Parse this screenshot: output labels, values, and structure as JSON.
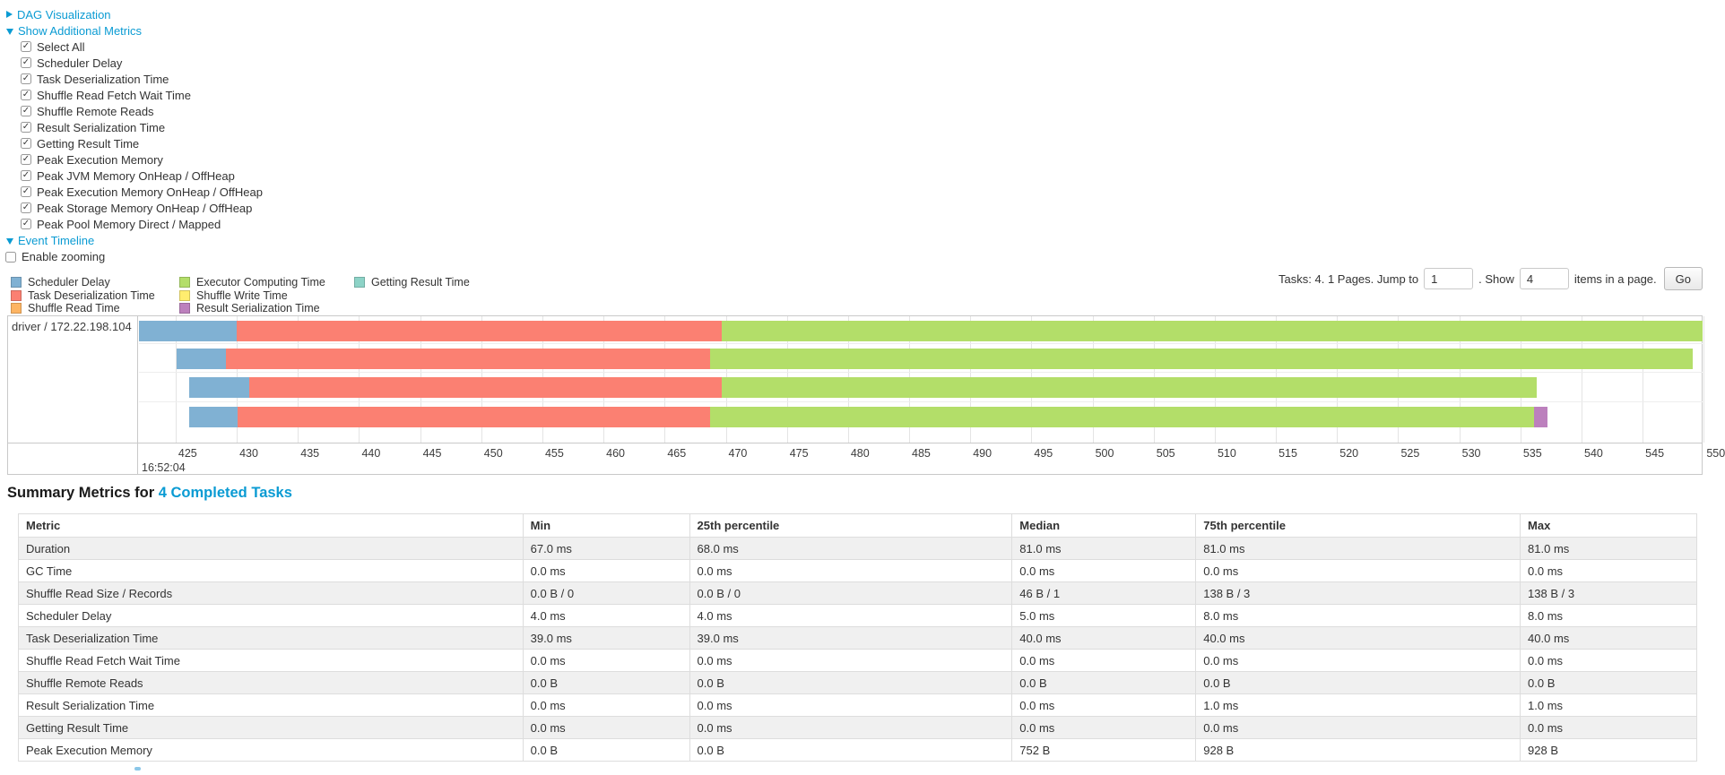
{
  "links": {
    "dag": "DAG Visualization",
    "metrics": "Show Additional Metrics",
    "timeline": "Event Timeline"
  },
  "metrics_panel": {
    "checkboxes": [
      "Select All",
      "Scheduler Delay",
      "Task Deserialization Time",
      "Shuffle Read Fetch Wait Time",
      "Shuffle Remote Reads",
      "Result Serialization Time",
      "Getting Result Time",
      "Peak Execution Memory",
      "Peak JVM Memory OnHeap / OffHeap",
      "Peak Execution Memory OnHeap / OffHeap",
      "Peak Storage Memory OnHeap / OffHeap",
      "Peak Pool Memory Direct / Mapped"
    ],
    "check_glyph": "✓"
  },
  "enable_zooming_label": "Enable zooming",
  "pagination": {
    "before_text": "Tasks: 4. 1 Pages. Jump to",
    "jump_value": "1",
    "mid_text": ". Show",
    "show_value": "4",
    "after_text": "items in a page.",
    "go_label": "Go"
  },
  "timeline_colors": {
    "scheduler_delay": "#80B1D3",
    "task_deserialization": "#FB8072",
    "shuffle_read": "#FDB462",
    "executor_computing": "#B3DE69",
    "shuffle_write": "#FFED6F",
    "result_serialization": "#BC80BD",
    "getting_result": "#8DD3C7"
  },
  "legend": {
    "columns": [
      [
        {
          "label": "Scheduler Delay",
          "metric": "scheduler_delay"
        },
        {
          "label": "Task Deserialization Time",
          "metric": "task_deserialization"
        },
        {
          "label": "Shuffle Read Time",
          "metric": "shuffle_read"
        }
      ],
      [
        {
          "label": "Executor Computing Time",
          "metric": "executor_computing"
        },
        {
          "label": "Shuffle Write Time",
          "metric": "shuffle_write"
        },
        {
          "label": "Result Serialization Time",
          "metric": "result_serialization"
        }
      ],
      [
        {
          "label": "Getting Result Time",
          "metric": "getting_result"
        }
      ]
    ]
  },
  "chart_data": {
    "type": "timeline",
    "group_label": "driver / 172.22.198.104",
    "axis": {
      "min": 422.0,
      "max": 549.9,
      "ticks": [
        425,
        430,
        435,
        440,
        445,
        450,
        455,
        460,
        465,
        470,
        475,
        480,
        485,
        490,
        495,
        500,
        505,
        510,
        515,
        520,
        525,
        530,
        535,
        540,
        545,
        550
      ],
      "start_time_label": "16:52:04",
      "tick_unit": "ms"
    },
    "bars": [
      {
        "task": 1,
        "segments": [
          {
            "metric": "scheduler_delay",
            "from": 422.0,
            "to": 430.0
          },
          {
            "metric": "task_deserialization",
            "from": 430.0,
            "to": 469.7
          },
          {
            "metric": "executor_computing",
            "from": 469.7,
            "to": 549.9
          }
        ]
      },
      {
        "task": 2,
        "segments": [
          {
            "metric": "scheduler_delay",
            "from": 425.1,
            "to": 429.1
          },
          {
            "metric": "task_deserialization",
            "from": 429.1,
            "to": 468.7
          },
          {
            "metric": "executor_computing",
            "from": 468.7,
            "to": 549.1
          }
        ]
      },
      {
        "task": 3,
        "segments": [
          {
            "metric": "scheduler_delay",
            "from": 426.1,
            "to": 431.0
          },
          {
            "metric": "task_deserialization",
            "from": 431.0,
            "to": 469.7
          },
          {
            "metric": "executor_computing",
            "from": 469.7,
            "to": 536.3
          }
        ]
      },
      {
        "task": 4,
        "segments": [
          {
            "metric": "scheduler_delay",
            "from": 426.1,
            "to": 430.1
          },
          {
            "metric": "task_deserialization",
            "from": 430.1,
            "to": 468.7
          },
          {
            "metric": "executor_computing",
            "from": 468.7,
            "to": 536.1
          },
          {
            "metric": "result_serialization",
            "from": 536.1,
            "to": 537.2
          }
        ]
      }
    ]
  },
  "summary_table": {
    "title_prefix": "Summary Metrics for ",
    "title_link": "4 Completed Tasks",
    "columns": [
      "Metric",
      "Min",
      "25th percentile",
      "Median",
      "75th percentile",
      "Max"
    ],
    "rows": [
      [
        "Duration",
        "67.0 ms",
        "68.0 ms",
        "81.0 ms",
        "81.0 ms",
        "81.0 ms"
      ],
      [
        "GC Time",
        "0.0 ms",
        "0.0 ms",
        "0.0 ms",
        "0.0 ms",
        "0.0 ms"
      ],
      [
        "Shuffle Read Size / Records",
        "0.0 B / 0",
        "0.0 B / 0",
        "46 B / 1",
        "138 B / 3",
        "138 B / 3"
      ],
      [
        "Scheduler Delay",
        "4.0 ms",
        "4.0 ms",
        "5.0 ms",
        "8.0 ms",
        "8.0 ms"
      ],
      [
        "Task Deserialization Time",
        "39.0 ms",
        "39.0 ms",
        "40.0 ms",
        "40.0 ms",
        "40.0 ms"
      ],
      [
        "Shuffle Read Fetch Wait Time",
        "0.0 ms",
        "0.0 ms",
        "0.0 ms",
        "0.0 ms",
        "0.0 ms"
      ],
      [
        "Shuffle Remote Reads",
        "0.0 B",
        "0.0 B",
        "0.0 B",
        "0.0 B",
        "0.0 B"
      ],
      [
        "Result Serialization Time",
        "0.0 ms",
        "0.0 ms",
        "0.0 ms",
        "1.0 ms",
        "1.0 ms"
      ],
      [
        "Getting Result Time",
        "0.0 ms",
        "0.0 ms",
        "0.0 ms",
        "0.0 ms",
        "0.0 ms"
      ],
      [
        "Peak Execution Memory",
        "0.0 B",
        "0.0 B",
        "752 B",
        "928 B",
        "928 B"
      ]
    ]
  }
}
